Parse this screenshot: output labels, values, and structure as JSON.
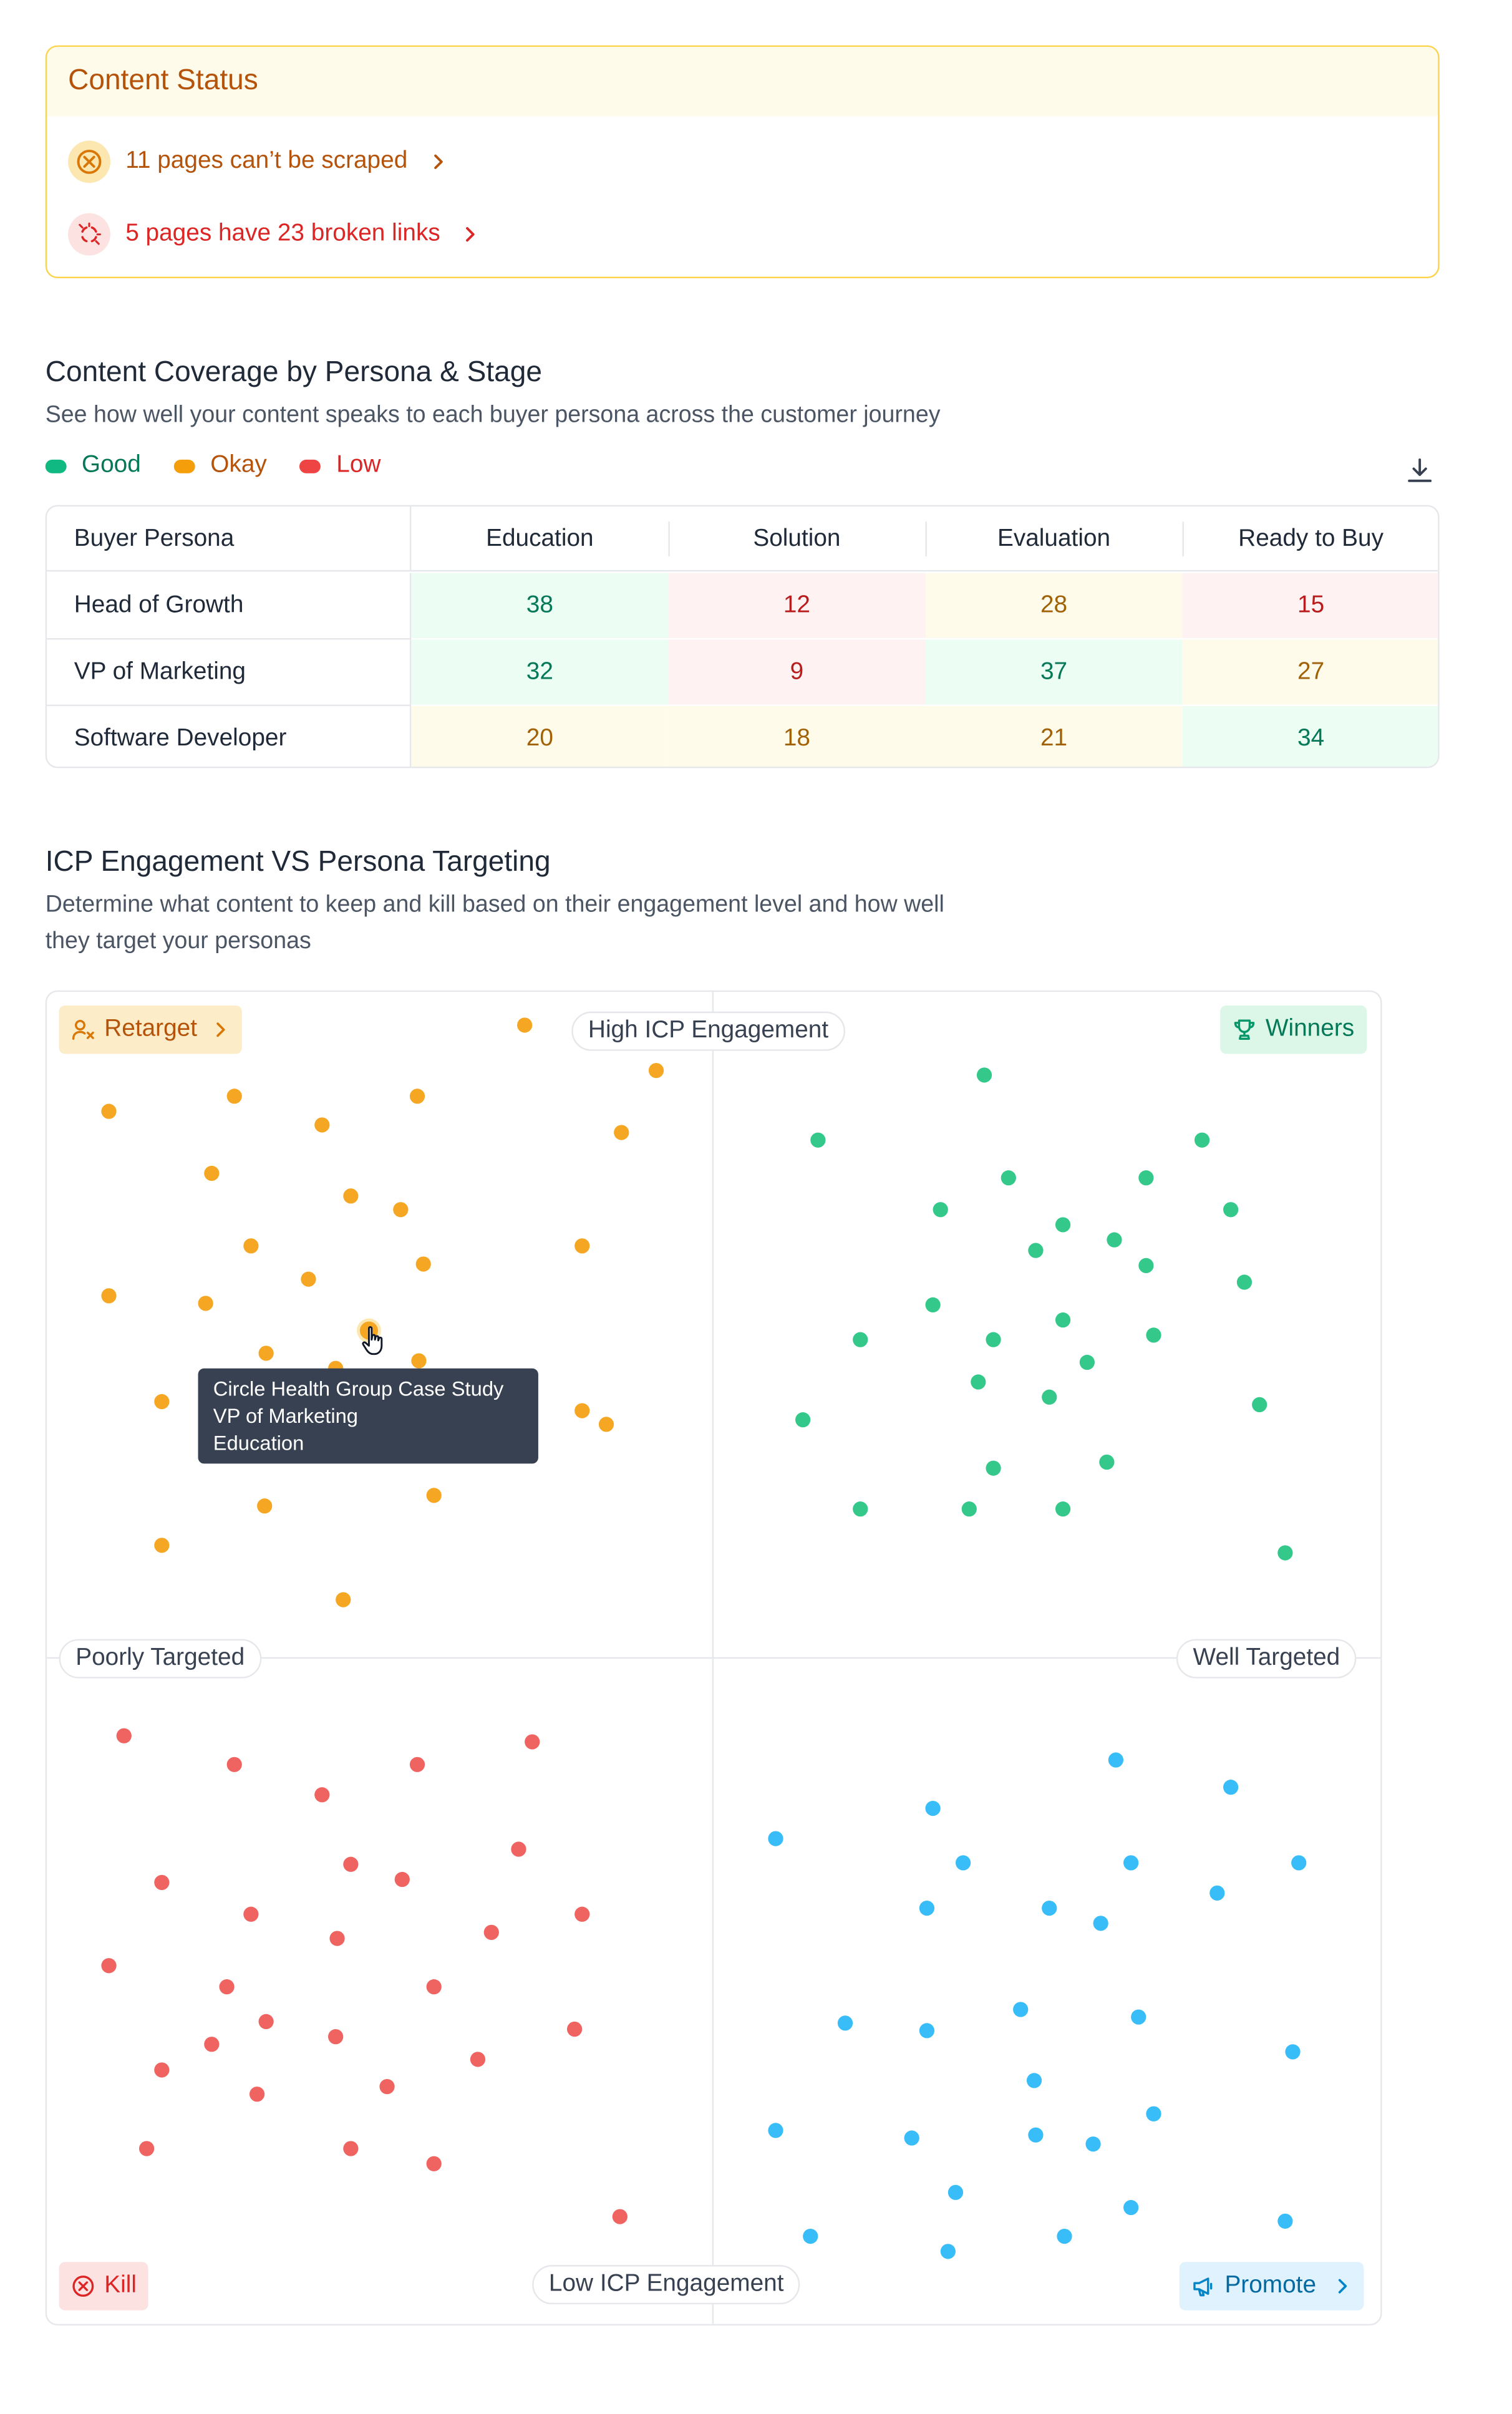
{
  "content_status": {
    "title": "Content Status",
    "scrape_issue": "11 pages can’t be scraped",
    "broken_links_issue": "5 pages have 23 broken links"
  },
  "coverage": {
    "title": "Content Coverage by Persona & Stage",
    "description": "See how well your content speaks to each buyer persona across the customer journey",
    "legend": [
      {
        "label": "Good",
        "color": "#10b981",
        "text_color": "#047857"
      },
      {
        "label": "Okay",
        "color": "#f59e0b",
        "text_color": "#b45309"
      },
      {
        "label": "Low",
        "color": "#ef4444",
        "text_color": "#dc2626"
      }
    ],
    "header": {
      "persona": "Buyer Persona",
      "stages": [
        "Education",
        "Solution",
        "Evaluation",
        "Ready to Buy"
      ]
    },
    "rows": [
      {
        "persona": "Head of Growth",
        "values": [
          {
            "value": "38",
            "level": "good"
          },
          {
            "value": "12",
            "level": "low"
          },
          {
            "value": "28",
            "level": "okay"
          },
          {
            "value": "15",
            "level": "low"
          }
        ]
      },
      {
        "persona": "VP of Marketing",
        "values": [
          {
            "value": "32",
            "level": "good"
          },
          {
            "value": "9",
            "level": "low"
          },
          {
            "value": "37",
            "level": "good"
          },
          {
            "value": "27",
            "level": "okay"
          }
        ]
      },
      {
        "persona": "Software Developer",
        "values": [
          {
            "value": "20",
            "level": "okay"
          },
          {
            "value": "18",
            "level": "okay"
          },
          {
            "value": "21",
            "level": "okay"
          },
          {
            "value": "34",
            "level": "good"
          }
        ]
      }
    ]
  },
  "matrix": {
    "title": "ICP Engagement VS Persona Targeting",
    "description_line1": "Determine what content to keep and kill based on their engagement level and how well",
    "description_line2": "they target your personas",
    "axis_top": "High ICP Engagement",
    "axis_bottom": "Low ICP Engagement",
    "axis_left": "Poorly Targeted",
    "axis_right": "Well Targeted",
    "quadrants": {
      "retarget": {
        "label": "Retarget",
        "color": "#f5a623"
      },
      "winners": {
        "label": "Winners",
        "color": "#34c98a"
      },
      "kill": {
        "label": "Kill",
        "color": "#ef6461"
      },
      "promote": {
        "label": "Promote",
        "color": "#38bdf8"
      }
    },
    "tooltip": {
      "title": "Circle Health Group Case Study",
      "persona": "VP of Marketing",
      "stage": "Education"
    }
  }
}
